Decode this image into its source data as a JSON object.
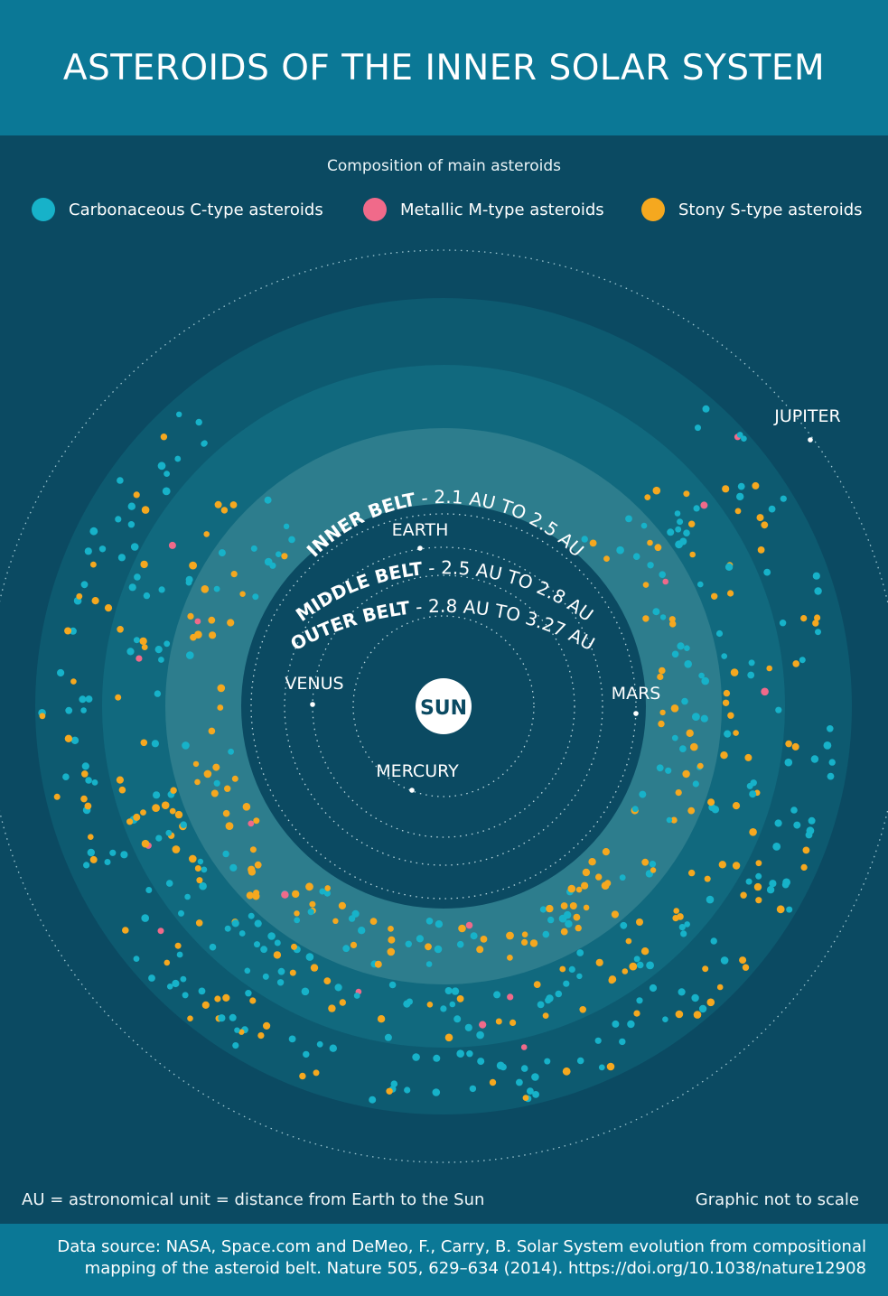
{
  "title": "ASTEROIDS OF THE INNER SOLAR SYSTEM",
  "legend": {
    "title": "Composition of main asteroids",
    "items": [
      {
        "label": "Carbonaceous C-type asteroids",
        "color": "#17b2c9",
        "icon": "c-type-dot-icon"
      },
      {
        "label": "Metallic M-type asteroids",
        "color": "#f06a8a",
        "icon": "m-type-dot-icon"
      },
      {
        "label": "Stony S-type asteroids",
        "color": "#f5a81f",
        "icon": "s-type-dot-icon"
      }
    ]
  },
  "center": {
    "label": "SUN"
  },
  "planets": [
    {
      "label": "MERCURY"
    },
    {
      "label": "VENUS"
    },
    {
      "label": "EARTH"
    },
    {
      "label": "MARS"
    },
    {
      "label": "JUPITER"
    }
  ],
  "belts": [
    {
      "name": "INNER BELT",
      "range": " - 2.1 AU TO 2.5 AU"
    },
    {
      "name": "MIDDLE BELT",
      "range": " - 2.5 AU TO 2.8 AU"
    },
    {
      "name": "OUTER BELT",
      "range": " - 2.8 AU TO 3.27 AU"
    }
  ],
  "notes": {
    "au_definition": "AU = astronomical unit = distance from Earth to the Sun",
    "scale": "Graphic not to scale"
  },
  "source": {
    "line1": "Data source: NASA, Space.com and DeMeo, F., Carry, B. Solar System evolution from compositional",
    "line2": "mapping of the asteroid belt. Nature 505, 629–634 (2014). https://doi.org/10.1038/nature12908"
  },
  "colors": {
    "header": "#0b7896",
    "background": "#0b4a62",
    "outer_belt": "#0d5a70",
    "middle_belt": "#11697e",
    "inner_belt": "#2d7d8d"
  }
}
